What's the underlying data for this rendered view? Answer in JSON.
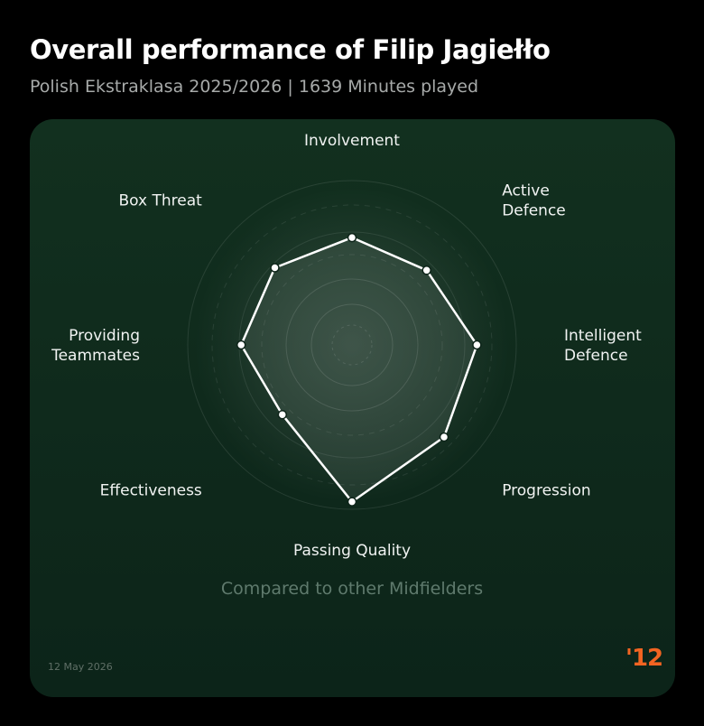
{
  "header": {
    "title": "Overall performance of Filip Jagiełło",
    "subtitle": "Polish Ekstraklasa 2025/2026 | 1639 Minutes played"
  },
  "footer": {
    "compared_to": "Compared to other Midfielders",
    "date": "12 May 2026",
    "logo_text": "'12"
  },
  "colors": {
    "background": "#000000",
    "card": "#0f2a1e",
    "line": "#ffffff",
    "logo": "#f26422"
  },
  "chart_data": {
    "type": "radar",
    "title": "",
    "max_value": 100,
    "axes": [
      {
        "name": "Involvement",
        "lines": [
          "Involvement"
        ],
        "value": 61
      },
      {
        "name": "Active Defence",
        "lines": [
          "Active",
          "Defence"
        ],
        "value": 60
      },
      {
        "name": "Intelligent Defence",
        "lines": [
          "Intelligent",
          "Defence"
        ],
        "value": 71
      },
      {
        "name": "Progression",
        "lines": [
          "Progression"
        ],
        "value": 74
      },
      {
        "name": "Passing Quality",
        "lines": [
          "Passing Quality"
        ],
        "value": 89
      },
      {
        "name": "Effectiveness",
        "lines": [
          "Effectiveness"
        ],
        "value": 56
      },
      {
        "name": "Providing Teammates",
        "lines": [
          "Providing",
          "Teammates"
        ],
        "value": 63
      },
      {
        "name": "Box Threat",
        "lines": [
          "Box Threat"
        ],
        "value": 62
      }
    ],
    "grid": true
  }
}
